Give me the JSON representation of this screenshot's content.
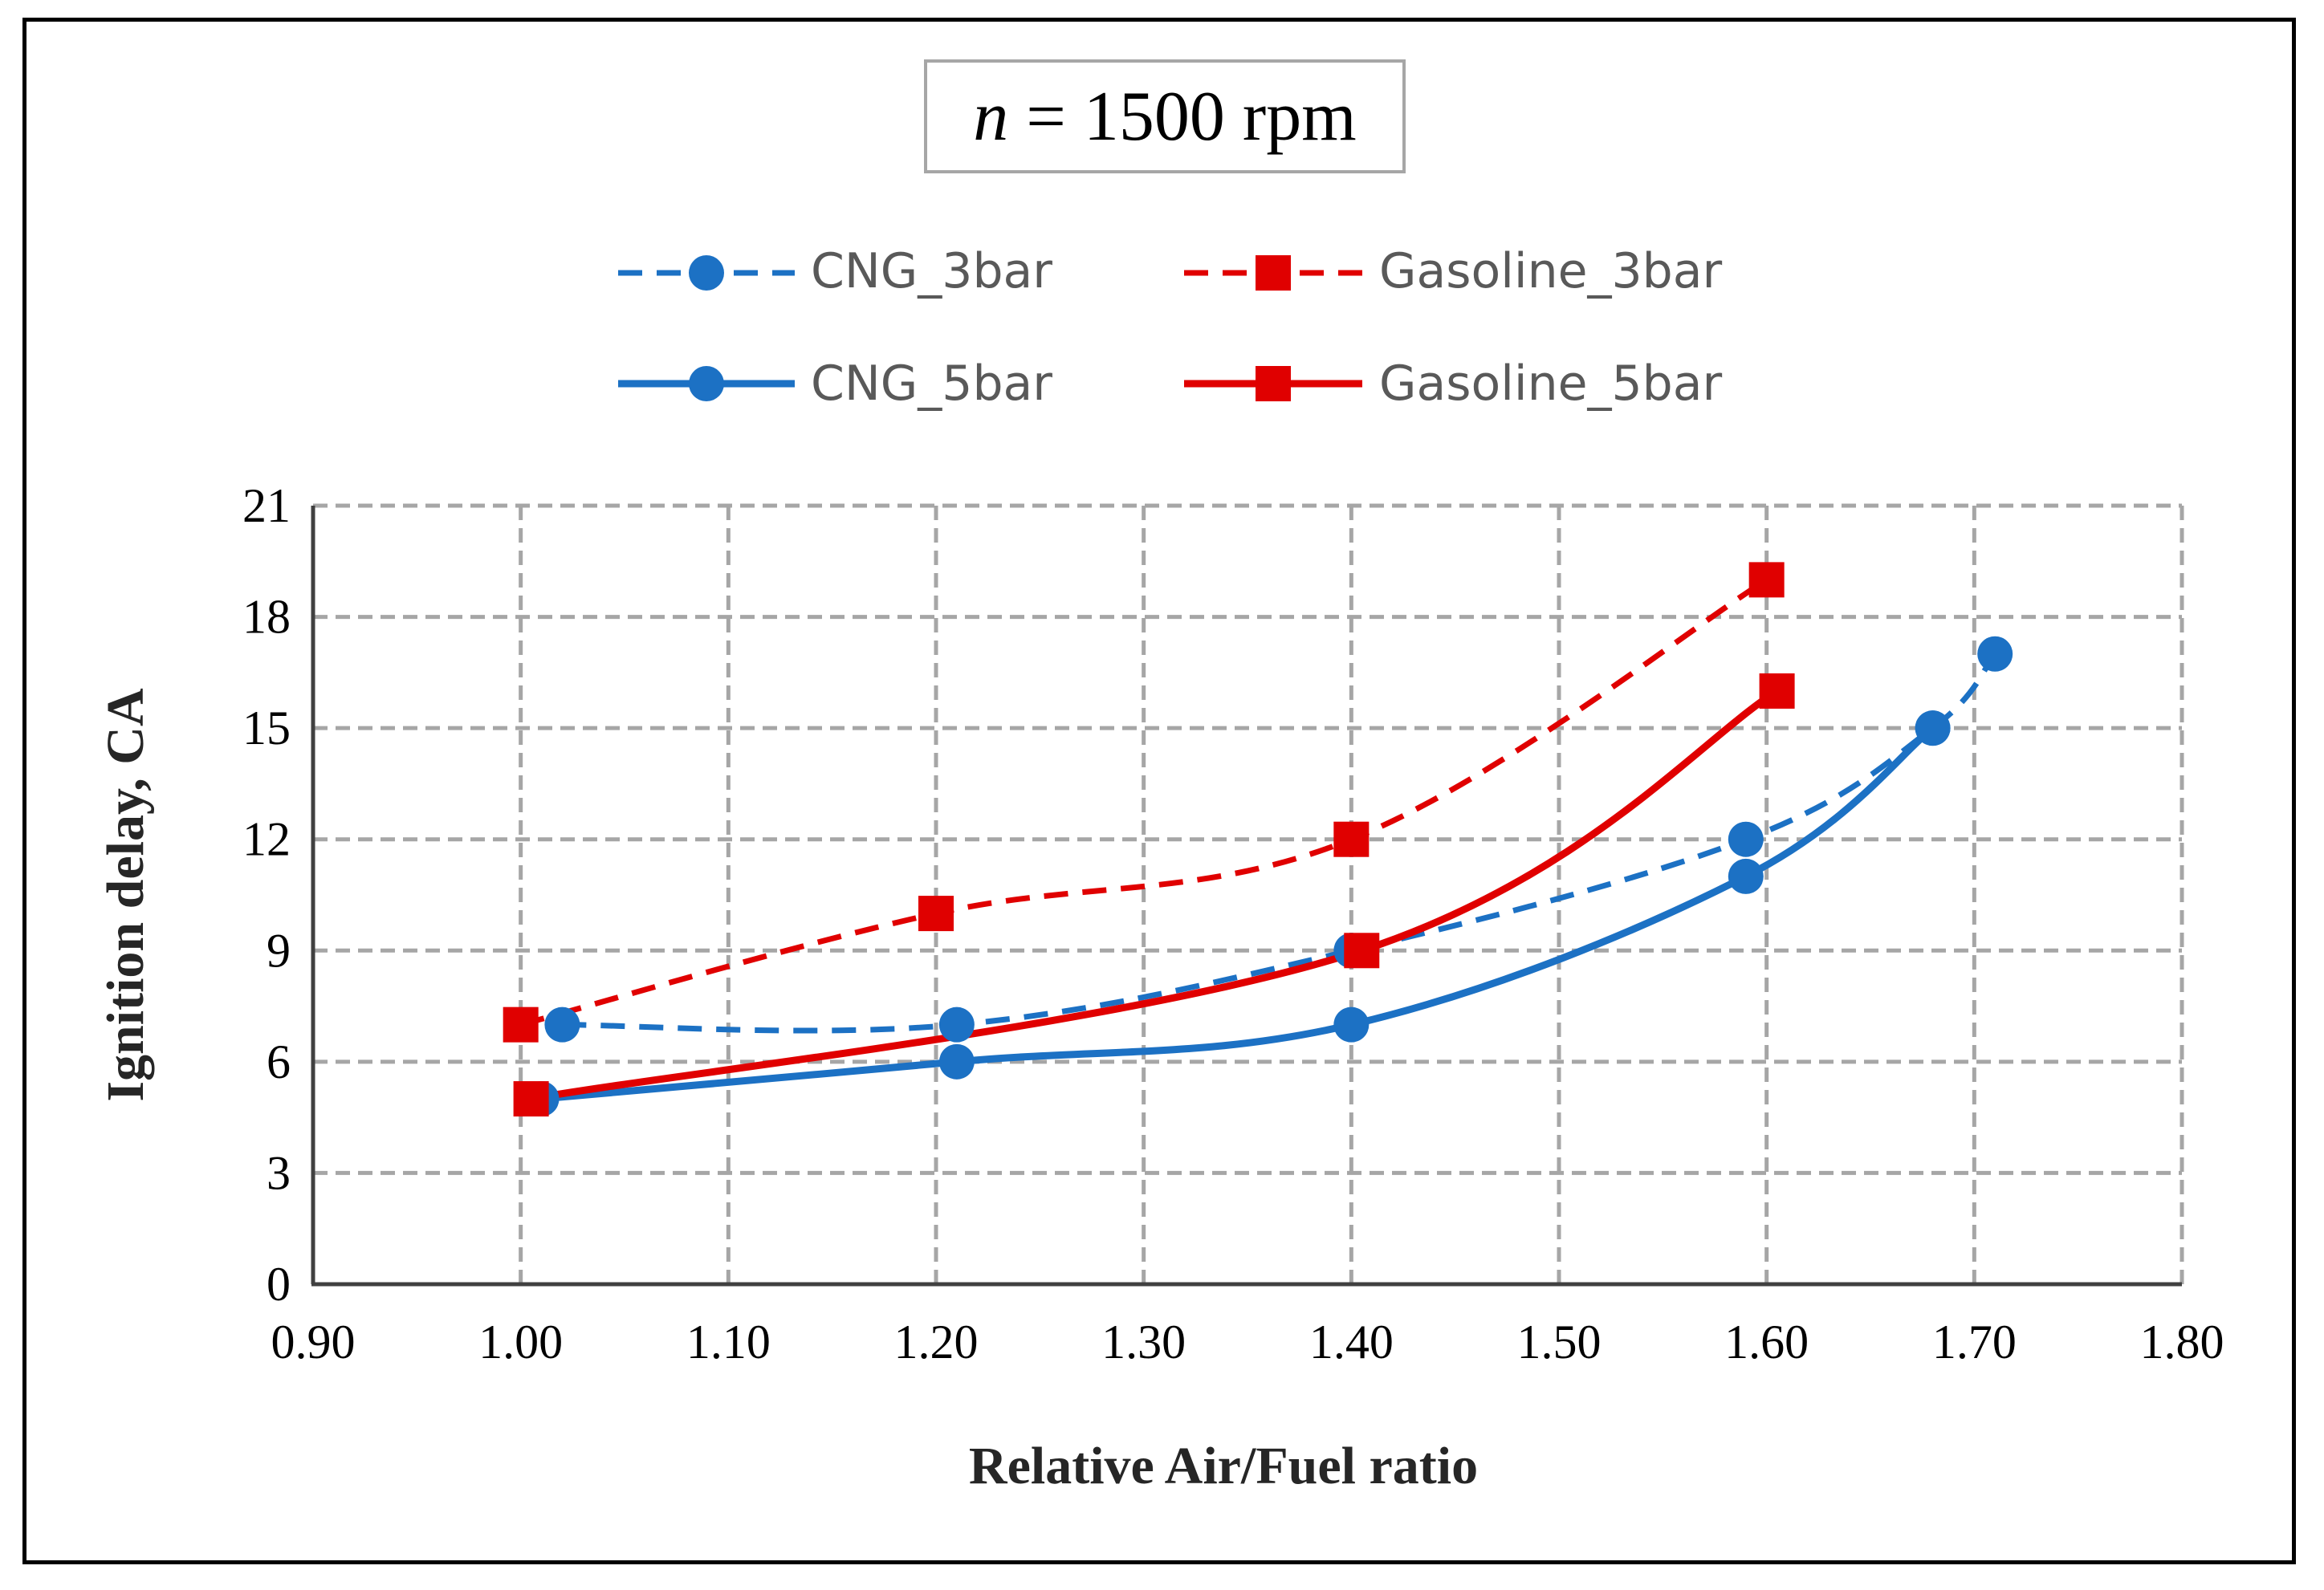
{
  "title": {
    "italic_var": "n",
    "rest": " = 1500 rpm"
  },
  "legend": [
    {
      "name": "CNG_3bar"
    },
    {
      "name": "Gasoline_3bar"
    },
    {
      "name": "CNG_5bar"
    },
    {
      "name": "Gasoline_5bar"
    }
  ],
  "chart_data": {
    "type": "line",
    "title": "n = 1500 rpm",
    "xlabel": "Relative Air/Fuel ratio",
    "ylabel": "Ignition delay, CA",
    "xlim": [
      0.9,
      1.8
    ],
    "ylim": [
      0,
      21
    ],
    "xticks": [
      "0.90",
      "1.00",
      "1.10",
      "1.20",
      "1.30",
      "1.40",
      "1.50",
      "1.60",
      "1.70",
      "1.80"
    ],
    "yticks": [
      "0",
      "3",
      "6",
      "9",
      "12",
      "15",
      "18",
      "21"
    ],
    "grid": true,
    "legend_position": "top",
    "series": [
      {
        "name": "CNG_3bar",
        "color": "#1c71c4",
        "style": "dashed",
        "marker": "circle",
        "x": [
          1.02,
          1.21,
          1.4,
          1.59,
          1.68,
          1.71
        ],
        "y": [
          7,
          7,
          9,
          12,
          15,
          17
        ]
      },
      {
        "name": "Gasoline_3bar",
        "color": "#e00000",
        "style": "dashed",
        "marker": "square",
        "x": [
          1.0,
          1.2,
          1.4,
          1.6
        ],
        "y": [
          7,
          10,
          12,
          19
        ]
      },
      {
        "name": "CNG_5bar",
        "color": "#1c71c4",
        "style": "solid",
        "marker": "circle",
        "x": [
          1.01,
          1.21,
          1.4,
          1.59,
          1.68
        ],
        "y": [
          5,
          6,
          7,
          11,
          15
        ]
      },
      {
        "name": "Gasoline_5bar",
        "color": "#e00000",
        "style": "solid",
        "marker": "square",
        "x": [
          1.005,
          1.405,
          1.605
        ],
        "y": [
          5,
          9,
          16
        ]
      }
    ]
  }
}
